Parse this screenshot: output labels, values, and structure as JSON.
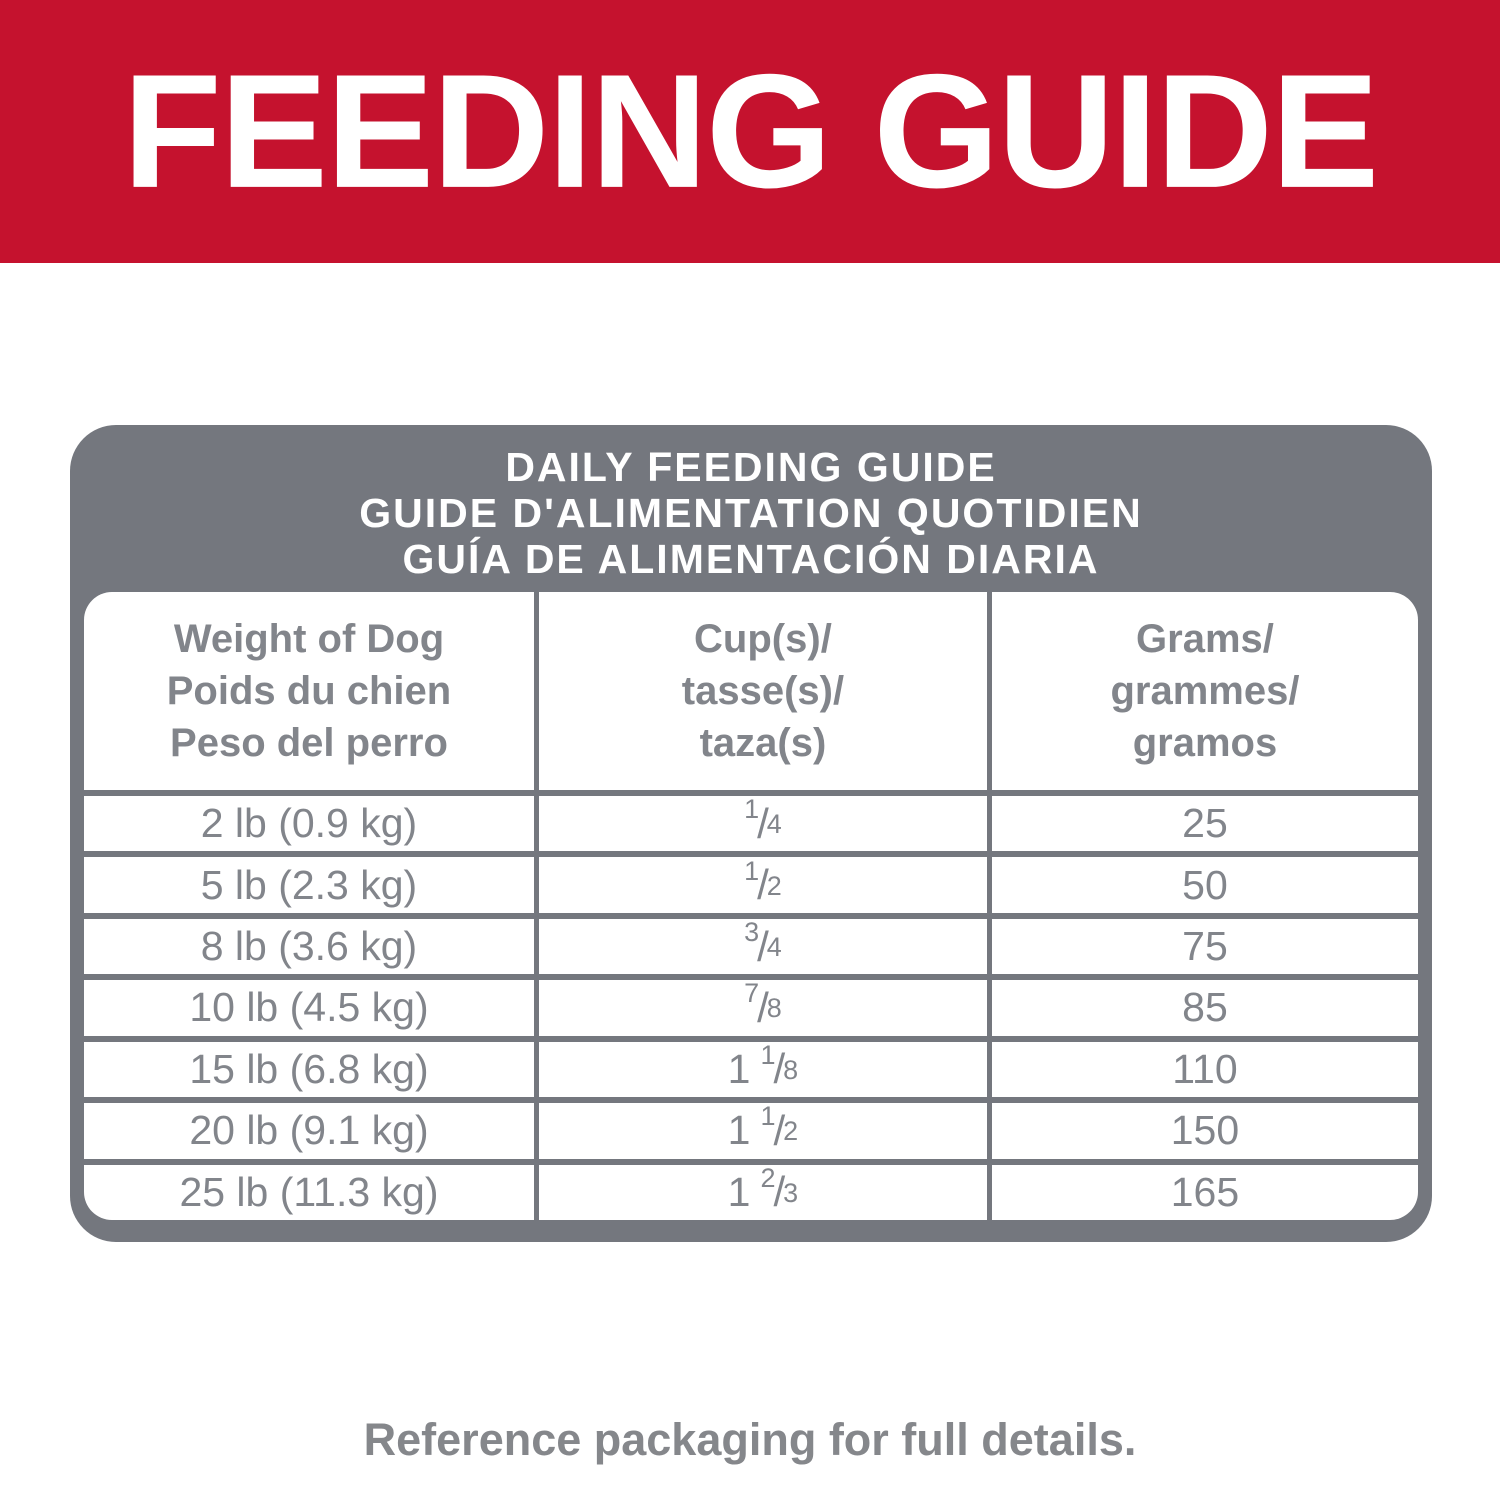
{
  "banner": {
    "title": "FEEDING GUIDE"
  },
  "panel": {
    "title_lines": [
      "DAILY FEEDING GUIDE",
      "GUIDE D'ALIMENTATION QUOTIDIEN",
      "GUÍA DE ALIMENTACIÓN DIARIA"
    ]
  },
  "table": {
    "fraction_slash": "/",
    "columns": [
      {
        "lines": [
          "Weight of Dog",
          "Poids du chien",
          "Peso del perro"
        ]
      },
      {
        "lines": [
          "Cup(s)/",
          "tasse(s)/",
          "taza(s)"
        ]
      },
      {
        "lines": [
          "Grams/",
          "grammes/",
          "gramos"
        ]
      }
    ],
    "rows": [
      {
        "weight": "2 lb (0.9 kg)",
        "cups_whole": "",
        "cups_num": "1",
        "cups_den": "4",
        "grams": "25"
      },
      {
        "weight": "5 lb (2.3 kg)",
        "cups_whole": "",
        "cups_num": "1",
        "cups_den": "2",
        "grams": "50"
      },
      {
        "weight": "8 lb (3.6 kg)",
        "cups_whole": "",
        "cups_num": "3",
        "cups_den": "4",
        "grams": "75"
      },
      {
        "weight": "10 lb (4.5 kg)",
        "cups_whole": "",
        "cups_num": "7",
        "cups_den": "8",
        "grams": "85"
      },
      {
        "weight": "15 lb (6.8 kg)",
        "cups_whole": "1",
        "cups_num": "1",
        "cups_den": "8",
        "grams": "110"
      },
      {
        "weight": "20 lb (9.1 kg)",
        "cups_whole": "1",
        "cups_num": "1",
        "cups_den": "2",
        "grams": "150"
      },
      {
        "weight": "25 lb (11.3 kg)",
        "cups_whole": "1",
        "cups_num": "2",
        "cups_den": "3",
        "grams": "165"
      }
    ]
  },
  "footer": {
    "note": "Reference packaging for full details."
  },
  "colors": {
    "banner_bg": "#C5122E",
    "banner_text": "#FFFFFF",
    "panel_bg": "#74777E",
    "panel_text": "#FFFFFF",
    "cell_bg": "#FFFFFF",
    "table_text": "#82858B",
    "footer_text": "#85878B",
    "page_bg": "#FFFFFF"
  }
}
